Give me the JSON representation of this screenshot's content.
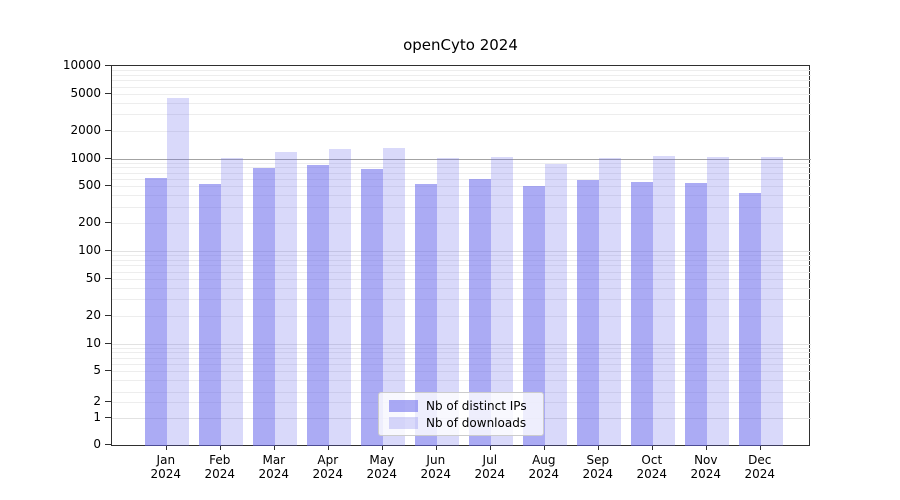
{
  "title": "openCyto 2024",
  "chart_data": {
    "type": "bar",
    "title": "openCyto 2024",
    "categories": [
      "Jan 2024",
      "Feb 2024",
      "Mar 2024",
      "Apr 2024",
      "May 2024",
      "Jun 2024",
      "Jul 2024",
      "Aug 2024",
      "Sep 2024",
      "Oct 2024",
      "Nov 2024",
      "Dec 2024"
    ],
    "series": [
      {
        "name": "Nb of distinct IPs",
        "color": "#6666eb",
        "alpha": 0.55,
        "values": [
          620,
          535,
          780,
          850,
          770,
          530,
          600,
          510,
          580,
          560,
          550,
          425
        ]
      },
      {
        "name": "Nb of downloads",
        "color": "#6666eb",
        "alpha": 0.25,
        "values": [
          4500,
          1010,
          1170,
          1270,
          1300,
          1005,
          1045,
          880,
          1010,
          1065,
          1045,
          1045
        ]
      }
    ],
    "yscale": "symlog",
    "yticks": [
      10000,
      5000,
      2000,
      1000,
      500,
      200,
      100,
      50,
      20,
      10,
      5,
      2,
      1,
      0
    ],
    "ylim": [
      0,
      10000
    ],
    "xlabel": "",
    "ylabel": "",
    "grid": true,
    "highlighted_gridline": 1000,
    "legend_position": "lower center"
  },
  "legend": {
    "items": [
      {
        "label": "Nb of distinct IPs"
      },
      {
        "label": "Nb of downloads"
      }
    ]
  }
}
